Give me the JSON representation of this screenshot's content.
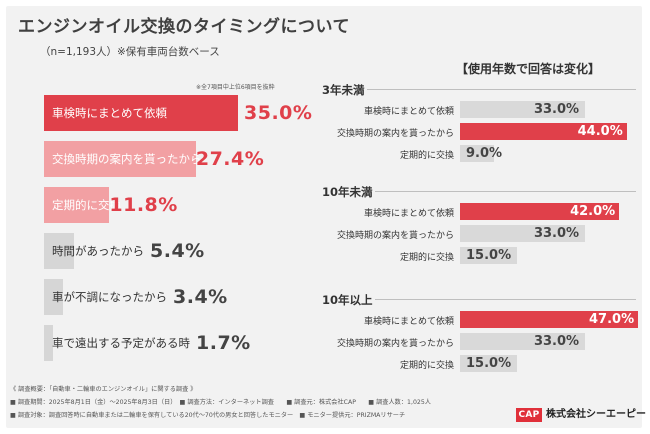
{
  "header": {
    "title": "エンジンオイル交換のタイミングについて",
    "subtitle": "（n=1,193人）※保有車両台数ベース"
  },
  "chart_data": [
    {
      "type": "bar",
      "note": "※全7項目中上位6項目を抜粋",
      "categories": [
        "車検時にまとめて依頼",
        "交換時期の案内を貰ったから",
        "定期的に交換",
        "時間があったから",
        "車が不調になったから",
        "車で遠出する予定がある時"
      ],
      "values": [
        35.0,
        27.4,
        11.8,
        5.4,
        3.4,
        1.7
      ],
      "value_labels": [
        "35.0%",
        "27.4%",
        "11.8%",
        "5.4%",
        "3.4%",
        "1.7%"
      ],
      "colors": [
        "#e0404a",
        "#f2a0a3",
        "#f2a0a3",
        "#d6d6d6",
        "#d6d6d6",
        "#d6d6d6"
      ],
      "value_colors": [
        "#e0404a",
        "#e0404a",
        "#e0404a",
        "#444444",
        "#444444",
        "#444444"
      ],
      "label_colors": [
        "#ffffff",
        "#ffffff",
        "#ffffff",
        "#333333",
        "#333333",
        "#333333"
      ],
      "xlim": [
        0,
        35
      ]
    },
    {
      "type": "bar",
      "title": "【使用年数で回答は変化】",
      "groups": [
        {
          "name": "3年未満",
          "categories": [
            "車検時にまとめて依頼",
            "交換時期の案内を貰ったから",
            "定期的に交換"
          ],
          "values": [
            33.0,
            44.0,
            9.0
          ],
          "value_labels": [
            "33.0%",
            "44.0%",
            "9.0%"
          ],
          "highlight": [
            false,
            true,
            false
          ]
        },
        {
          "name": "10年未満",
          "categories": [
            "車検時にまとめて依頼",
            "交換時期の案内を貰ったから",
            "定期的に交換"
          ],
          "values": [
            42.0,
            33.0,
            15.0
          ],
          "value_labels": [
            "42.0%",
            "33.0%",
            "15.0%"
          ],
          "highlight": [
            true,
            false,
            false
          ]
        },
        {
          "name": "10年以上",
          "categories": [
            "車検時にまとめて依頼",
            "交換時期の案内を貰ったから",
            "定期的に交換"
          ],
          "values": [
            47.0,
            33.0,
            15.0
          ],
          "value_labels": [
            "47.0%",
            "33.0%",
            "15.0%"
          ],
          "highlight": [
            true,
            false,
            false
          ]
        }
      ],
      "xlim": [
        0,
        47
      ],
      "colors": {
        "highlight": "#e0404a",
        "normal": "#d9d9d9"
      }
    }
  ],
  "footer": {
    "line1": "《 調査概要：「自動車・二輪車のエンジンオイル」に関する調査 》",
    "line2": "■ 調査期間：2025年8月1日（金）～2025年8月3日（日）　■ 調査方法：インターネット調査　　■ 調査元：株式会社CAP　　■ 調査人数：1,025人",
    "line3": "■ 調査対象：調査回答時に自動車または二輪車を保有している20代〜70代の男女と回答したモニター　■ モニター提供元：PRIZMAリサーチ"
  },
  "logo": {
    "mark": "CAP",
    "company": "株式会社シーエーピー"
  }
}
